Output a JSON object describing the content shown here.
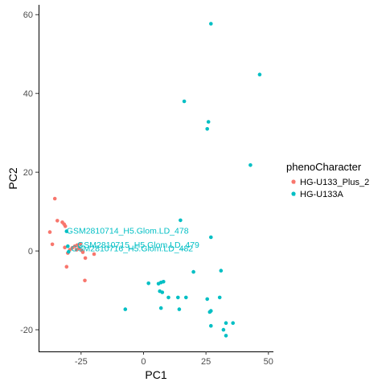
{
  "chart_data": {
    "type": "scatter",
    "xlabel": "PC1",
    "ylabel": "PC2",
    "xlim": [
      -42,
      52
    ],
    "ylim": [
      -25.5,
      62.5
    ],
    "xticks": [
      -25,
      0,
      25,
      50
    ],
    "yticks": [
      -20,
      0,
      20,
      40,
      60
    ],
    "xtick_labels": [
      "-25",
      "0",
      "25",
      "50"
    ],
    "ytick_labels": [
      "-20",
      "0",
      "20",
      "40",
      "60"
    ],
    "grid": false,
    "legend": {
      "title": "phenoCharacter",
      "placement": "right"
    },
    "series": [
      {
        "name": "HG-U133_Plus_2",
        "color": "#F8766D",
        "points": [
          [
            -37.5,
            4.8
          ],
          [
            -36.5,
            1.7
          ],
          [
            -35.5,
            13.3
          ],
          [
            -34.5,
            7.7
          ],
          [
            -32.5,
            7.3
          ],
          [
            -31.8,
            6.8
          ],
          [
            -31.3,
            6.3
          ],
          [
            -31.5,
            0.9
          ],
          [
            -30.8,
            -4.0
          ],
          [
            -30.3,
            -0.5
          ],
          [
            -29.5,
            0.3
          ],
          [
            -28.5,
            0.8
          ],
          [
            -27.5,
            1.2
          ],
          [
            -26.5,
            1.5
          ],
          [
            -25.8,
            0.7
          ],
          [
            -25.3,
            1.8
          ],
          [
            -24.8,
            0.2
          ],
          [
            -24.3,
            -0.3
          ],
          [
            -23.3,
            -1.8
          ],
          [
            -23.5,
            -7.5
          ],
          [
            -19.8,
            -0.8
          ],
          [
            -26.8,
            0.3
          ]
        ]
      },
      {
        "name": "HG-U133A",
        "color": "#00BFC4",
        "points": [
          [
            27.0,
            57.7
          ],
          [
            46.5,
            44.8
          ],
          [
            16.3,
            38.0
          ],
          [
            26.0,
            32.8
          ],
          [
            25.5,
            31.0
          ],
          [
            42.8,
            21.8
          ],
          [
            14.8,
            7.8
          ],
          [
            27.0,
            3.5
          ],
          [
            -30.8,
            5.0
          ],
          [
            -30.3,
            1.2
          ],
          [
            -30.0,
            -0.2
          ],
          [
            31.0,
            -5.0
          ],
          [
            20.0,
            -5.3
          ],
          [
            2.0,
            -8.2
          ],
          [
            6.0,
            -8.3
          ],
          [
            7.0,
            -8.0
          ],
          [
            8.0,
            -7.8
          ],
          [
            6.5,
            -10.2
          ],
          [
            7.5,
            -10.5
          ],
          [
            10.0,
            -11.8
          ],
          [
            13.8,
            -11.8
          ],
          [
            17.0,
            -11.8
          ],
          [
            25.5,
            -12.2
          ],
          [
            30.5,
            -11.8
          ],
          [
            7.0,
            -14.5
          ],
          [
            14.3,
            -14.8
          ],
          [
            -7.3,
            -14.8
          ],
          [
            26.5,
            -15.5
          ],
          [
            27.0,
            -15.2
          ],
          [
            33.0,
            -18.3
          ],
          [
            35.8,
            -18.3
          ],
          [
            27.0,
            -19.0
          ],
          [
            32.0,
            -20.0
          ],
          [
            33.0,
            -21.5
          ]
        ]
      }
    ],
    "annotations": [
      {
        "text": "GSM2810714_H5.Glom.LD_478",
        "x": -30.8,
        "y": 5.0
      },
      {
        "text": "GSM2810715_H5.Glom.LD_479",
        "x": -26.5,
        "y": 1.5
      },
      {
        "text": "GSM2810716_H5.Glom.LD_482",
        "x": -29.0,
        "y": 0.5
      }
    ]
  }
}
